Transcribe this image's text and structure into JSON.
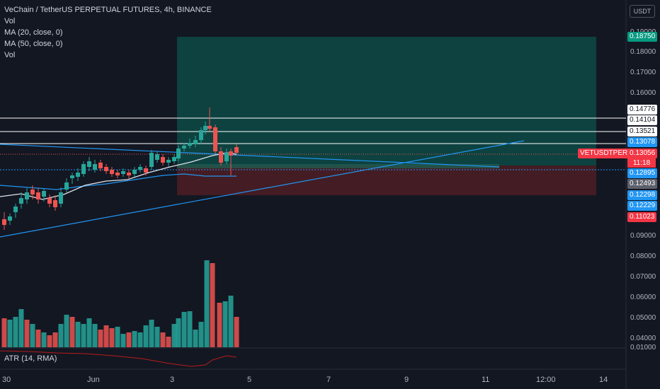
{
  "header": {
    "title": "VeChain / TetherUS PERPETUAL FUTURES, 4h, BINANCE",
    "legend_items": [
      "Vol",
      "MA (20, close, 0)",
      "MA (50, close, 0)",
      "Vol"
    ]
  },
  "currency": "USDT",
  "price_axis": {
    "ticks": [
      "0.19000",
      "0.18000",
      "0.17000",
      "0.16000",
      "0.09000",
      "0.08000",
      "0.07000",
      "0.06000",
      "0.05000",
      "0.04000",
      "0.01000"
    ]
  },
  "price_tags": {
    "tag1": "0.18750",
    "tag2": "0.14776",
    "tag3": "0.14104",
    "tag4": "0.13521",
    "tag5": "0.13078",
    "symbol": "VETUSDTPERP",
    "last": "0.13056",
    "countdown": "11:18",
    "tag6": "0.12895",
    "tag7": "0.12493",
    "tag8": "0.12298",
    "tag9": "0.12229",
    "tag10": "0.11023"
  },
  "indicator": {
    "atr_label": "ATR (14, RMA)"
  },
  "time_axis": {
    "ticks": [
      "30",
      "Jun",
      "3",
      "5",
      "7",
      "9",
      "11",
      "12:00",
      "14"
    ]
  },
  "colors": {
    "up": "#26a69a",
    "down": "#ef5350",
    "background": "#131722",
    "blue": "#2962ff"
  }
}
